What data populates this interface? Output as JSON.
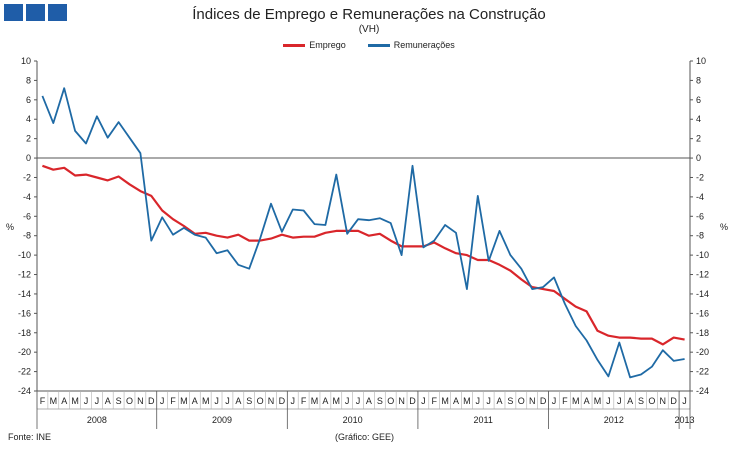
{
  "header": {
    "title": "Índices de Emprego e Remunerações na Construção",
    "subtitle": "(VH)"
  },
  "footer": {
    "source": "Fonte: INE",
    "credit": "(Gráfico: GEE)"
  },
  "colors": {
    "logo": "#1f5da8",
    "axis": "#555555",
    "grid": "#b0b0b0"
  },
  "chart_data": {
    "type": "line",
    "title": "Índices de Emprego e Remunerações na Construção",
    "subtitle": "(VH)",
    "ylabel_left": "%",
    "ylabel_right": "%",
    "ylim": [
      -24,
      10
    ],
    "yticks": [
      10,
      8,
      6,
      4,
      2,
      0,
      -2,
      -4,
      -6,
      -8,
      -10,
      -12,
      -14,
      -16,
      -18,
      -20,
      -22,
      -24
    ],
    "legend_position": "top-center",
    "x_month_labels": [
      "F",
      "M",
      "A",
      "M",
      "J",
      "J",
      "A",
      "S",
      "O",
      "N",
      "D",
      "J",
      "F",
      "M",
      "A",
      "M",
      "J",
      "J",
      "A",
      "S",
      "O",
      "N",
      "D",
      "J",
      "F",
      "M",
      "A",
      "M",
      "J",
      "J",
      "A",
      "S",
      "O",
      "N",
      "D",
      "J",
      "F",
      "M",
      "A",
      "M",
      "J",
      "J",
      "A",
      "S",
      "O",
      "N",
      "D",
      "J",
      "F",
      "M",
      "A",
      "M",
      "J",
      "J",
      "A",
      "S",
      "O",
      "N",
      "D",
      "J"
    ],
    "x_year_labels": [
      {
        "label": "2008",
        "start": 0,
        "end": 10
      },
      {
        "label": "2009",
        "start": 11,
        "end": 22
      },
      {
        "label": "2010",
        "start": 23,
        "end": 34
      },
      {
        "label": "2011",
        "start": 35,
        "end": 46
      },
      {
        "label": "2012",
        "start": 47,
        "end": 58
      },
      {
        "label": "2013",
        "start": 59,
        "end": 59
      }
    ],
    "series": [
      {
        "name": "Emprego",
        "color": "#d9262b",
        "values": [
          -0.8,
          -1.2,
          -1.0,
          -1.8,
          -1.7,
          -2.0,
          -2.3,
          -1.9,
          -2.7,
          -3.4,
          -3.9,
          -5.4,
          -6.3,
          -7.0,
          -7.8,
          -7.7,
          -8.0,
          -8.2,
          -7.9,
          -8.5,
          -8.5,
          -8.3,
          -7.9,
          -8.2,
          -8.1,
          -8.1,
          -7.7,
          -7.5,
          -7.5,
          -7.5,
          -8.0,
          -7.8,
          -8.5,
          -9.1,
          -9.1,
          -9.1,
          -8.7,
          -9.3,
          -9.8,
          -10.0,
          -10.5,
          -10.5,
          -11.0,
          -11.6,
          -12.5,
          -13.3,
          -13.5,
          -13.7,
          -14.5,
          -15.3,
          -15.8,
          -17.8,
          -18.3,
          -18.5,
          -18.5,
          -18.6,
          -18.6,
          -19.2,
          -18.5,
          -18.7
        ]
      },
      {
        "name": "Remunerações",
        "color": "#1f6aa5",
        "values": [
          6.4,
          3.6,
          7.2,
          2.8,
          1.5,
          4.3,
          2.1,
          3.7,
          2.1,
          0.5,
          -8.5,
          -6.1,
          -7.9,
          -7.2,
          -7.9,
          -8.2,
          -9.8,
          -9.5,
          -11.0,
          -11.4,
          -8.3,
          -4.7,
          -7.6,
          -5.3,
          -5.4,
          -6.8,
          -6.9,
          -1.7,
          -7.8,
          -6.3,
          -6.4,
          -6.2,
          -6.7,
          -10.0,
          -0.8,
          -9.2,
          -8.5,
          -6.9,
          -7.7,
          -13.5,
          -3.9,
          -10.6,
          -7.5,
          -10.0,
          -11.4,
          -13.5,
          -13.3,
          -12.3,
          -15.0,
          -17.3,
          -18.8,
          -20.8,
          -22.5,
          -19.0,
          -22.6,
          -22.3,
          -21.5,
          -19.8,
          -20.9,
          -20.7
        ]
      }
    ]
  }
}
